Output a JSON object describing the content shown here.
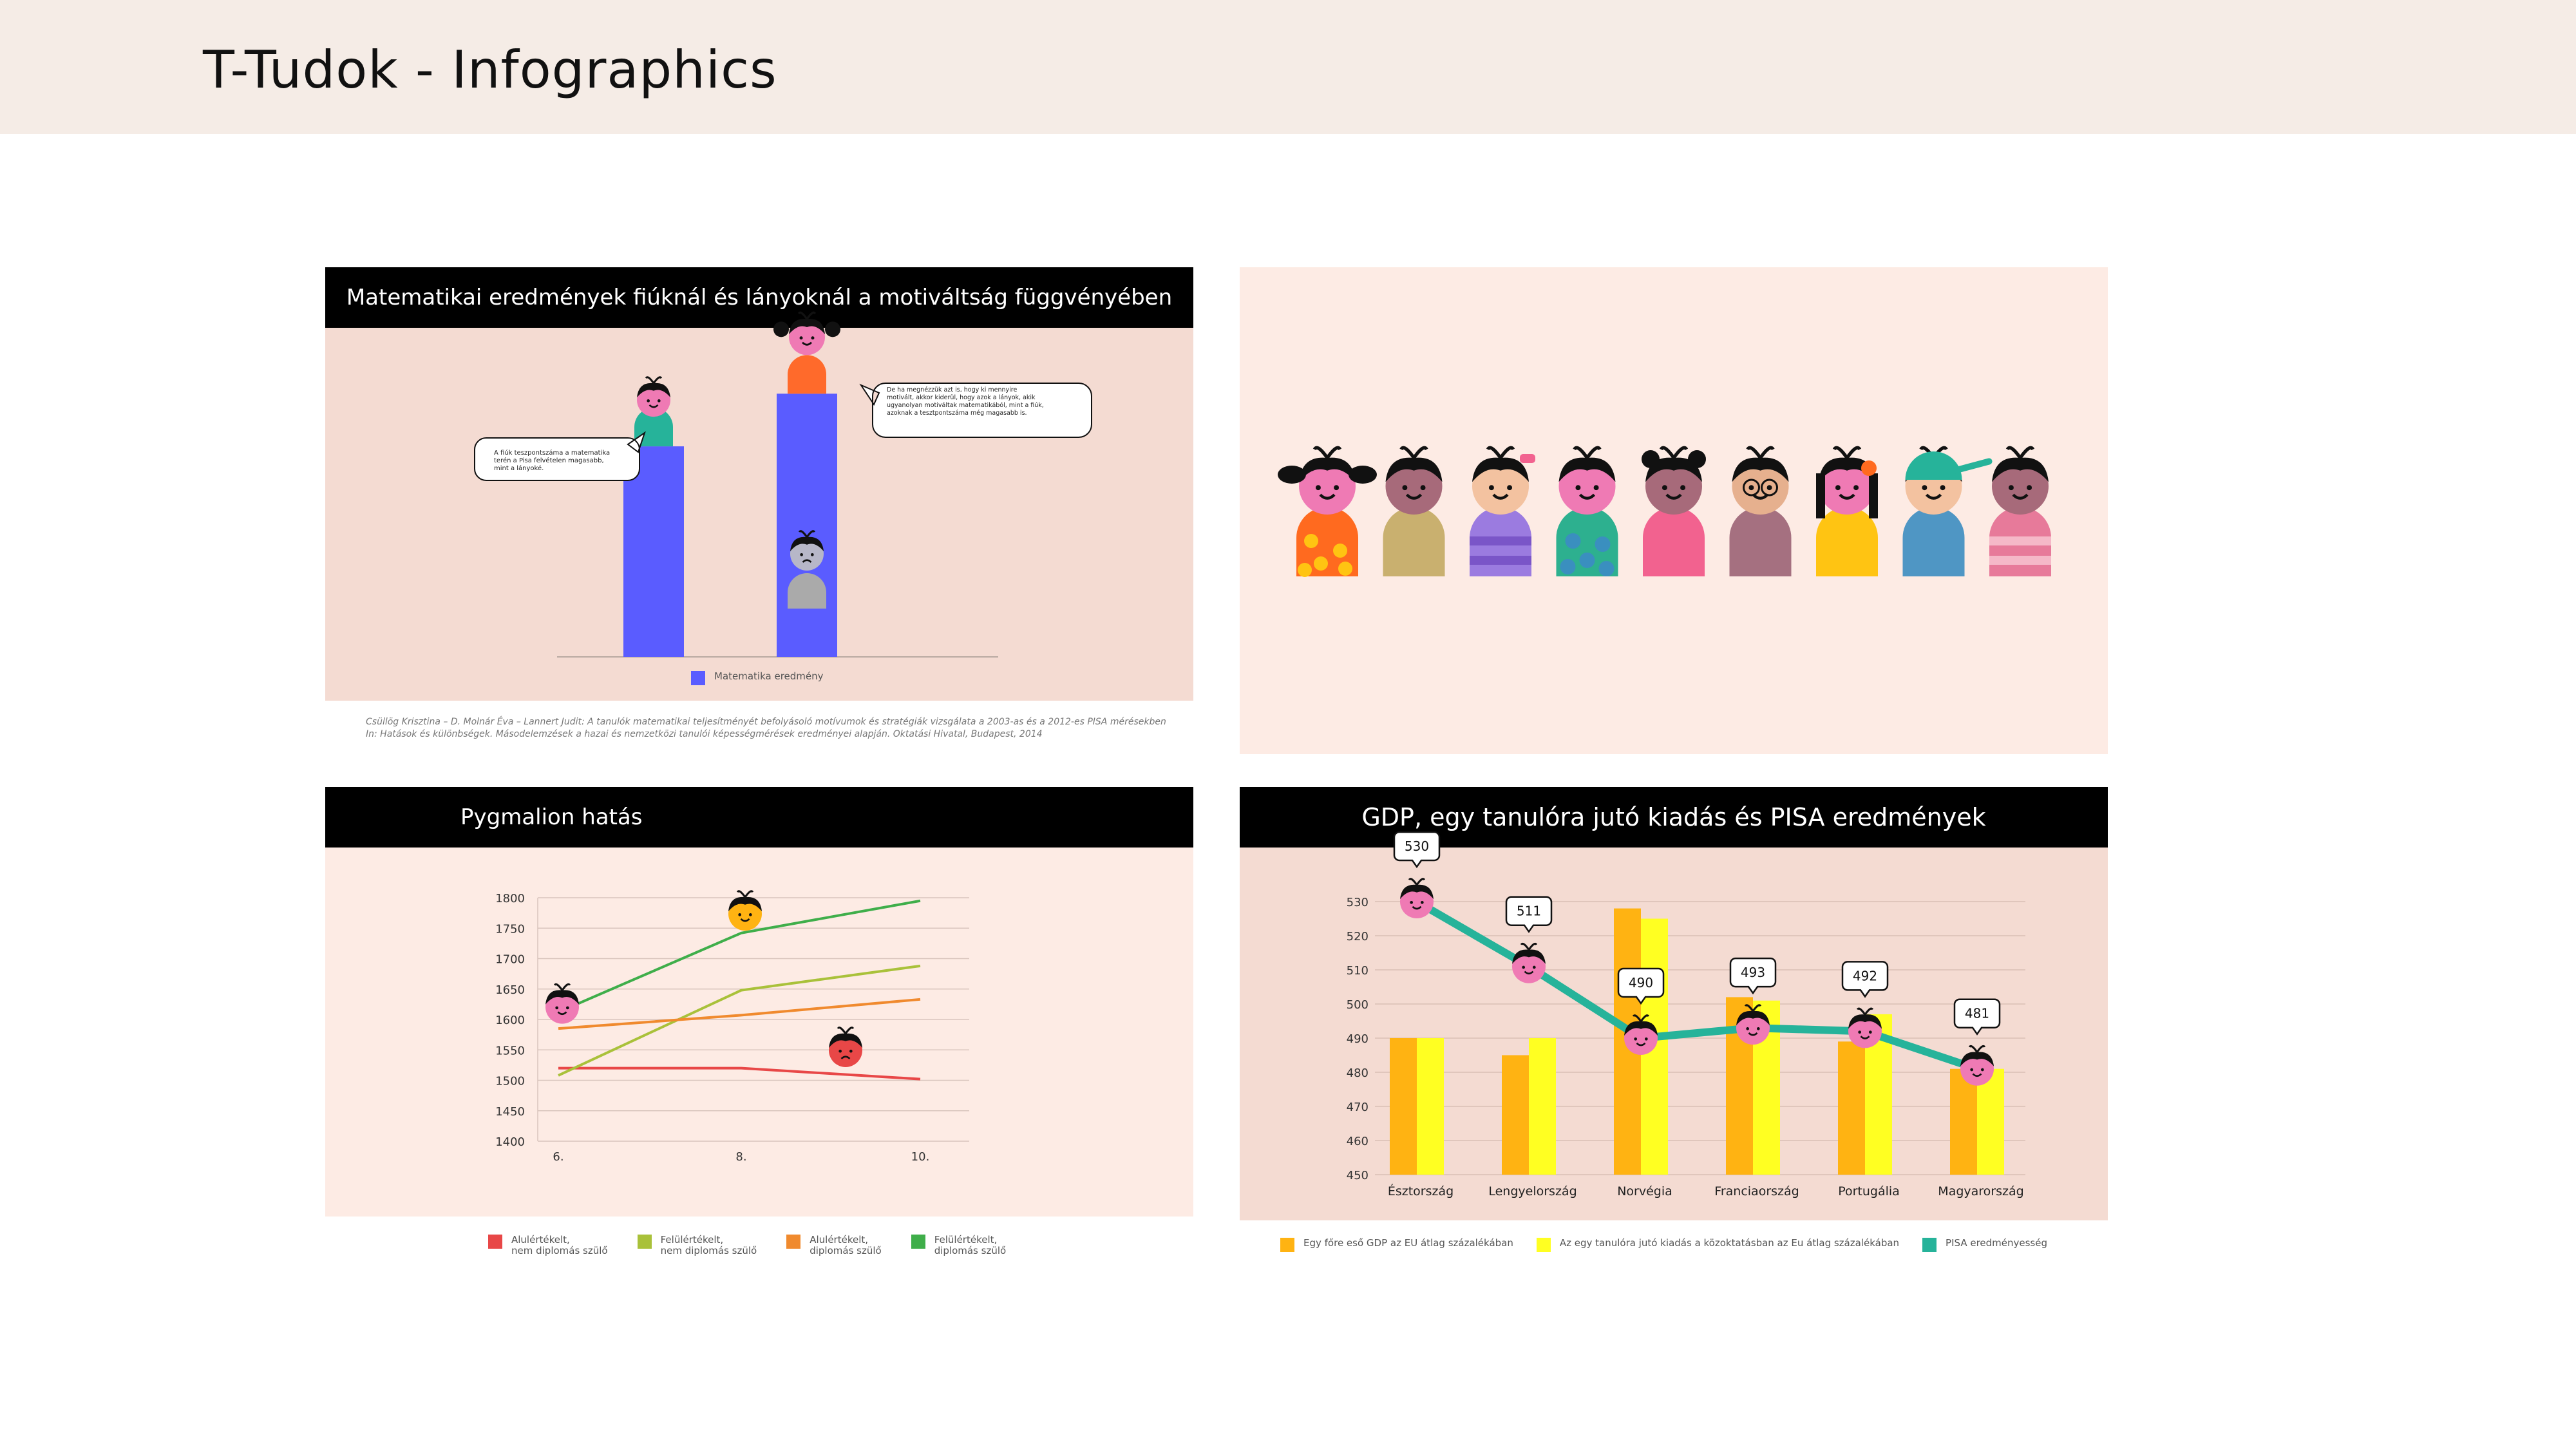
{
  "header": {
    "title": "T-Tudok - Infographics"
  },
  "colors": {
    "header_bg": "#f5ece6",
    "panel1_bg": "#f4dbd2",
    "panel2_bg": "#fdebe4",
    "panel3_bg": "#fdebe4",
    "panel4_bg": "#f4dbd2",
    "bar_blue": "#5a5cff",
    "face_pink": "#ef7ab4",
    "pisa_teal": "#26b39a",
    "gdp_orange": "#ffb312",
    "spend_yellow": "#ffff22"
  },
  "panel1": {
    "title": "Matematikai eredmények fiúknál és lányoknál a motiváltság függvényében",
    "bubble_left": "A fiúk teszpontszáma a matematika\nterén a Pisa felvételen magasabb,\nmint a lányoké.",
    "bubble_right": "De ha megnézzük azt is, hogy ki mennyire\nmotivált, akkor kiderül, hogy azok a lányok, akik\nugyanolyan motiváltak matematikából, mint a fiúk,\nazoknak a tesztpontszáma még magasabb is.",
    "chart_data": {
      "type": "bar",
      "categories": [
        "",
        ""
      ],
      "series": [
        {
          "name": "Matematika eredmény",
          "values": [
            100,
            125
          ]
        }
      ],
      "ylim": [
        0,
        130
      ]
    },
    "citation_line1": "Csüllög Krisztina – D. Molnár Éva – Lannert Judit: A tanulók matematikai teljesítményét befolyásoló motívumok és stratégiák vizsgálata a 2003-as és a 2012-es PISA mérésekben",
    "citation_line2": "In: Hatások és különbségek. Másodelemzések a hazai és nemzetközi tanulói képességmérések eredményei alapján. Oktatási Hivatal, Budapest, 2014"
  },
  "panel2": {
    "characters": [
      {
        "shirt": "#ff6a1f",
        "pattern": "dots-yellow",
        "face": "#ef7ab4",
        "hair": "pigtails"
      },
      {
        "shirt": "#c9b06f",
        "pattern": "none",
        "face": "#a76a7a",
        "hair": "sprout"
      },
      {
        "shirt": "#9b7be0",
        "pattern": "stripes",
        "face": "#f3c2a0",
        "hair": "bow"
      },
      {
        "shirt": "#2db08f",
        "pattern": "dots-blue",
        "face": "#ef7ab4",
        "hair": "bald"
      },
      {
        "shirt": "#f2628f",
        "pattern": "none",
        "face": "#a76a7a",
        "hair": "buns"
      },
      {
        "shirt": "#a57080",
        "pattern": "none",
        "face": "#e6b08e",
        "hair": "glasses"
      },
      {
        "shirt": "#ffc412",
        "pattern": "none",
        "face": "#ef7ab4",
        "hair": "long-flower"
      },
      {
        "shirt": "#4f96c4",
        "pattern": "none",
        "face": "#f3c2a0",
        "hair": "cap"
      },
      {
        "shirt": "#e77a9a",
        "pattern": "stripes-pink",
        "face": "#a76a7a",
        "hair": "sprout"
      }
    ]
  },
  "panel3": {
    "title": "Pygmalion hatás",
    "chart_data": {
      "type": "line",
      "x": [
        "6.",
        "8.",
        "10."
      ],
      "ylim": [
        1400,
        1800
      ],
      "yticks": [
        1400,
        1450,
        1500,
        1550,
        1600,
        1650,
        1700,
        1750,
        1800
      ],
      "series": [
        {
          "name": "Alulértékelt,\nnem diplomás szülő",
          "color": "#e84747",
          "values": [
            1520,
            1520,
            1502
          ]
        },
        {
          "name": "Felülértékelt,\nnem diplomás szülő",
          "color": "#a9c13a",
          "values": [
            1508,
            1648,
            1688
          ]
        },
        {
          "name": "Alulértékelt,\ndiplomás szülő",
          "color": "#f08a2e",
          "values": [
            1585,
            1607,
            1633
          ]
        },
        {
          "name": "Felülértékelt,\ndiplomás szülő",
          "color": "#3fae4a",
          "values": [
            1612,
            1742,
            1795
          ]
        }
      ]
    }
  },
  "panel4": {
    "title": "GDP, egy tanulóra jutó kiadás és PISA eredmények",
    "chart_data": {
      "type": "bar",
      "categories": [
        "Észtország",
        "Lengyelország",
        "Norvégia",
        "Franciaország",
        "Portugália",
        "Magyarország"
      ],
      "ylim": [
        450,
        530
      ],
      "yticks": [
        450,
        460,
        470,
        480,
        490,
        500,
        510,
        520,
        530
      ],
      "series": [
        {
          "name": "Egy főre eső GDP az EU átlag százalékában",
          "type": "bar",
          "color": "#ffb312",
          "values": [
            490,
            485,
            528,
            502,
            489,
            481
          ]
        },
        {
          "name": "Az egy tanulóra jutó kiadás a közoktatásban az Eu átlag százalékában",
          "type": "bar",
          "color": "#ffff22",
          "values": [
            490,
            490,
            525,
            501,
            497,
            481
          ]
        },
        {
          "name": "PISA eredményesség",
          "type": "line",
          "color": "#26b39a",
          "values": [
            530,
            511,
            490,
            493,
            492,
            481
          ]
        }
      ],
      "data_labels": [
        "530",
        "511",
        "490",
        "493",
        "492",
        "481"
      ]
    }
  }
}
